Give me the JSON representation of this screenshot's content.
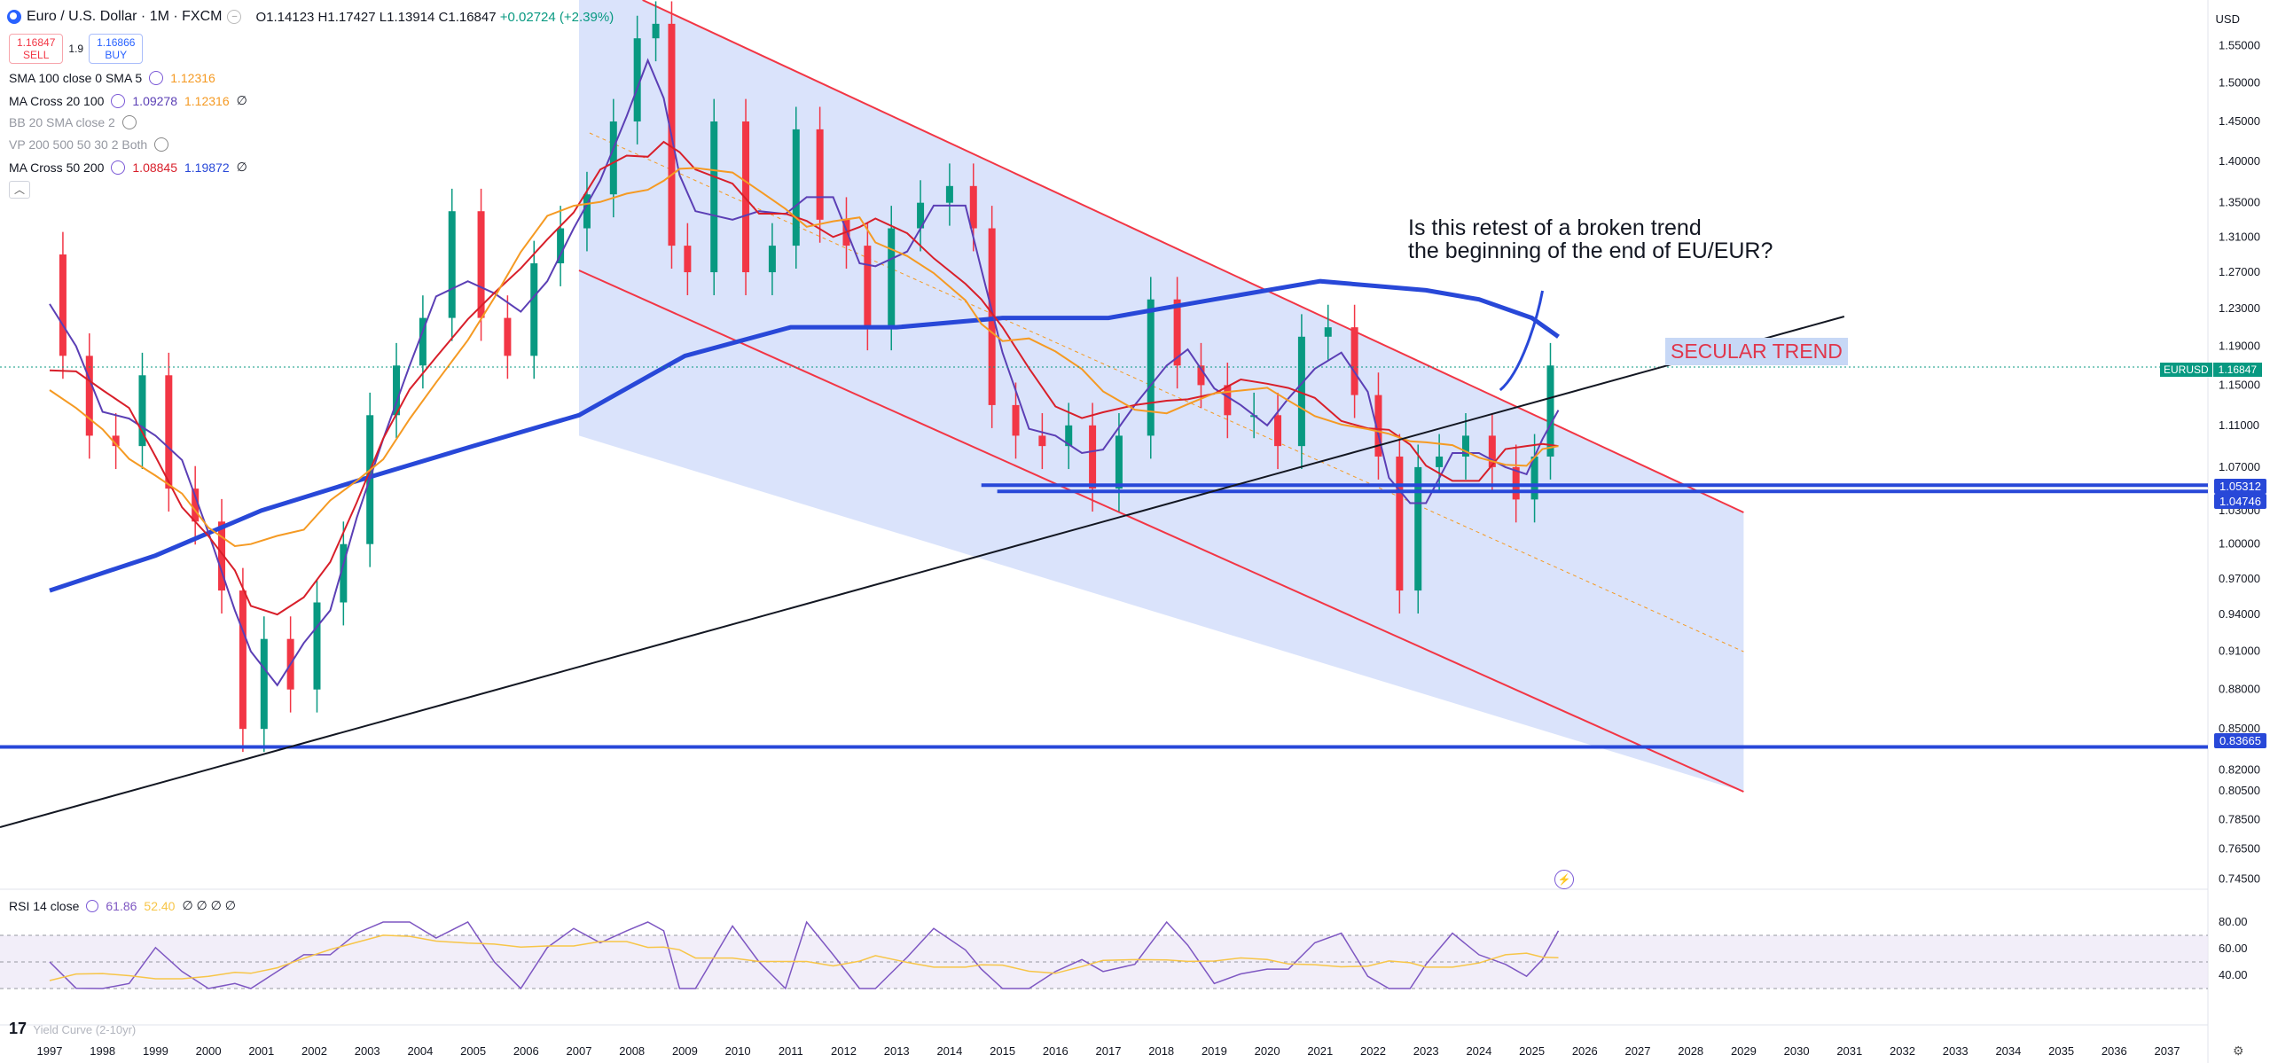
{
  "header": {
    "symbol_title": "Euro / U.S. Dollar · 1M · FXCM",
    "open": "O1.14123",
    "high": "H1.17427",
    "low": "L1.13914",
    "close": "C1.16847",
    "change": "+0.02724 (+2.39%)"
  },
  "trade": {
    "sell_price": "1.16847",
    "sell_label": "SELL",
    "spread": "1.9",
    "buy_price": "1.16866",
    "buy_label": "BUY"
  },
  "legends": {
    "sma": {
      "label": "SMA 100 close 0 SMA 5",
      "v1": "1.12316"
    },
    "ma_cross_20_100": {
      "label": "MA Cross 20 100",
      "v1": "1.09278",
      "v2": "1.12316",
      "v3": "∅"
    },
    "bb": {
      "label": "BB 20 SMA close 2"
    },
    "vp": {
      "label": "VP 200 500 50 30 2 Both"
    },
    "ma_cross_50_200": {
      "label": "MA Cross 50 200",
      "v1": "1.08845",
      "v2": "1.19872",
      "v3": "∅"
    }
  },
  "annotation": {
    "line1": "Is this retest of a broken trend",
    "line2": "the beginning of the end of EU/EUR?",
    "secular": "SECULAR TREND"
  },
  "rsi": {
    "label": "RSI 14 close",
    "v1": "61.86",
    "v2": "52.40",
    "rest": "∅ ∅ ∅ ∅",
    "ticks": [
      "80.00",
      "60.00",
      "40.00"
    ]
  },
  "yield_label": "Yield Curve (2-10yr)",
  "currency": "USD",
  "price_tags": {
    "eurusd_label": "EURUSD",
    "eurusd_value": "1.16847",
    "h1": "1.05312",
    "h2": "1.04746",
    "h3": "0.83665"
  },
  "colors": {
    "channel_fill": "#d6e0fb",
    "channel_border": "#f23645",
    "blue_line": "#2848d8",
    "ma_purple": "#5b3fb5",
    "ma_red": "#d81f2a",
    "ma_orange": "#f59a23",
    "up_candle": "#089981",
    "down_candle": "#f23645"
  },
  "chart_data": {
    "type": "line",
    "title": "Euro / U.S. Dollar · 1M · FXCM",
    "x_axis_years": [
      "1997",
      "1998",
      "1999",
      "2000",
      "2001",
      "2002",
      "2003",
      "2004",
      "2005",
      "2006",
      "2007",
      "2008",
      "2009",
      "2010",
      "2011",
      "2012",
      "2013",
      "2014",
      "2015",
      "2016",
      "2017",
      "2018",
      "2019",
      "2020",
      "2021",
      "2022",
      "2023",
      "2024",
      "2025",
      "2026",
      "2027",
      "2028",
      "2029",
      "2030",
      "2031",
      "2032",
      "2033",
      "2034",
      "2035",
      "2036",
      "2037"
    ],
    "y_ticks": [
      "1.55000",
      "1.50000",
      "1.45000",
      "1.40000",
      "1.35000",
      "1.31000",
      "1.27000",
      "1.23000",
      "1.19000",
      "1.15000",
      "1.11000",
      "1.07000",
      "1.03000",
      "1.00000",
      "0.97000",
      "0.94000",
      "0.91000",
      "0.88000",
      "0.85000",
      "0.82000",
      "0.80500",
      "0.78500",
      "0.76500",
      "0.74500"
    ],
    "ylim": [
      0.74,
      1.57
    ],
    "scale": "log",
    "series": [
      {
        "name": "EURUSD",
        "x": [
          1997.0,
          1997.5,
          1998.0,
          1998.5,
          1999.0,
          1999.5,
          2000.0,
          2000.5,
          2000.8,
          2001.3,
          2001.8,
          2002.3,
          2002.8,
          2003.3,
          2003.8,
          2004.3,
          2004.9,
          2005.4,
          2005.9,
          2006.4,
          2006.9,
          2007.4,
          2007.9,
          2008.3,
          2008.6,
          2008.9,
          2009.2,
          2009.9,
          2010.4,
          2010.9,
          2011.3,
          2011.8,
          2012.3,
          2012.6,
          2013.2,
          2013.7,
          2014.3,
          2014.6,
          2015.0,
          2015.5,
          2016.0,
          2016.5,
          2016.9,
          2017.5,
          2018.1,
          2018.5,
          2019.0,
          2019.5,
          2020.0,
          2020.4,
          2020.9,
          2021.4,
          2021.9,
          2022.3,
          2022.7,
          2023.0,
          2023.5,
          2024.0,
          2024.5,
          2024.9,
          2025.2,
          2025.5
        ],
        "values": [
          1.29,
          1.18,
          1.1,
          1.09,
          1.16,
          1.05,
          1.02,
          0.96,
          0.85,
          0.92,
          0.88,
          0.95,
          1.0,
          1.12,
          1.17,
          1.22,
          1.34,
          1.22,
          1.18,
          1.28,
          1.32,
          1.36,
          1.45,
          1.56,
          1.58,
          1.3,
          1.27,
          1.45,
          1.27,
          1.3,
          1.44,
          1.33,
          1.3,
          1.21,
          1.32,
          1.35,
          1.37,
          1.32,
          1.13,
          1.1,
          1.09,
          1.11,
          1.05,
          1.1,
          1.24,
          1.17,
          1.15,
          1.12,
          1.12,
          1.09,
          1.2,
          1.21,
          1.14,
          1.08,
          0.96,
          1.07,
          1.08,
          1.1,
          1.07,
          1.04,
          1.08,
          1.17
        ]
      },
      {
        "name": "MA Cross 50 200",
        "x": [
          1997,
          1999,
          2001,
          2003,
          2005,
          2007,
          2009,
          2011,
          2013,
          2015,
          2017,
          2019,
          2021,
          2023,
          2024,
          2025,
          2025.5
        ],
        "values": [
          0.96,
          0.99,
          1.03,
          1.06,
          1.09,
          1.12,
          1.18,
          1.21,
          1.21,
          1.22,
          1.22,
          1.24,
          1.26,
          1.25,
          1.24,
          1.22,
          1.2
        ]
      }
    ],
    "levels": [
      1.05312,
      1.04746,
      0.83665
    ],
    "grid": true,
    "legend": "top-left"
  }
}
